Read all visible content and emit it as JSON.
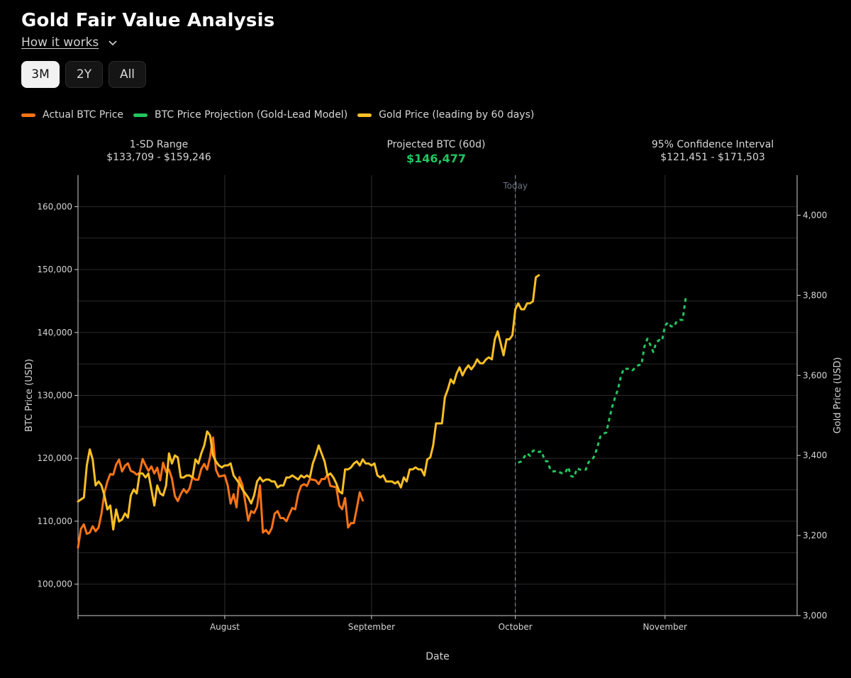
{
  "page": {
    "title": "Gold Fair Value Analysis",
    "how_it_works": "How it works",
    "ranges": [
      {
        "label": "3M",
        "active": true
      },
      {
        "label": "2Y",
        "active": false
      },
      {
        "label": "All",
        "active": false
      }
    ]
  },
  "legend": [
    {
      "label": "Actual BTC Price",
      "color": "#f97316"
    },
    {
      "label": "BTC Price Projection (Gold-Lead Model)",
      "color": "#22c55e"
    },
    {
      "label": "Gold Price (leading by 60 days)",
      "color": "#fbbf24"
    }
  ],
  "stats": {
    "sd_label": "1-SD Range",
    "sd_value": "$133,709 - $159,246",
    "proj_label": "Projected BTC (60d)",
    "proj_value": "$146,477",
    "ci_label": "95% Confidence Interval",
    "ci_value": "$121,451 - $171,503"
  },
  "chart_data": {
    "type": "line",
    "xlabel": "Date",
    "ylabel": "BTC Price (USD)",
    "y2label": "Gold Price (USD)",
    "ylim": [
      95000,
      165000
    ],
    "y2lim": [
      3000,
      4100
    ],
    "x_range_days": [
      0,
      149
    ],
    "yticks": [
      100000,
      110000,
      120000,
      130000,
      140000,
      150000,
      160000
    ],
    "ytick_labels": [
      "100,000",
      "110,000",
      "120,000",
      "130,000",
      "140,000",
      "150,000",
      "160,000"
    ],
    "y2ticks": [
      3000,
      3200,
      3400,
      3600,
      3800,
      4000
    ],
    "y2tick_labels": [
      "3,000",
      "3,200",
      "3,400",
      "3,600",
      "3,800",
      "4,000"
    ],
    "xticks": [
      {
        "day": 50,
        "label": "August"
      },
      {
        "day": 100,
        "label": "September"
      },
      {
        "day": 149,
        "label": "October"
      },
      {
        "day": 200,
        "label": "November"
      }
    ],
    "xlim_days": [
      0,
      245
    ],
    "today_day": 149,
    "today_label": "Today",
    "grid": true,
    "series": [
      {
        "name": "Actual BTC Price",
        "axis": "left",
        "color": "#f97316",
        "start_day": 0,
        "values": [
          105800,
          108800,
          109500,
          108000,
          108200,
          109200,
          108400,
          109000,
          111200,
          114500,
          116300,
          117500,
          117400,
          119000,
          119800,
          117900,
          118800,
          119200,
          118000,
          117800,
          117400,
          117700,
          119900,
          118900,
          118000,
          118700,
          117600,
          118500,
          116500,
          119300,
          117800,
          118200,
          116800,
          114000,
          113200,
          114300,
          115100,
          114500,
          115200,
          117000,
          116600,
          116600,
          118300,
          119100,
          118200,
          120200,
          123300,
          118200,
          117100,
          117200,
          117300,
          115700,
          112800,
          114300,
          112200,
          117000,
          115800,
          113000,
          110100,
          111600,
          111300,
          112300,
          115700,
          108200,
          108600,
          108000,
          108900,
          111200,
          111600,
          110500,
          110500,
          110000,
          111100,
          112100,
          111900,
          114300,
          115600,
          115900,
          115600,
          116700,
          116600,
          116500,
          115900,
          116700,
          116700,
          117400,
          115600,
          115500,
          115400,
          112500,
          111900,
          113700,
          109000,
          109700,
          109700,
          112100,
          114600,
          113300
        ]
      },
      {
        "name": "Gold Price (leading by 60 days)",
        "axis": "right",
        "color": "#fbbf24",
        "start_day": 0,
        "values": [
          3285,
          3290,
          3295,
          3375,
          3415,
          3390,
          3325,
          3335,
          3325,
          3300,
          3265,
          3275,
          3215,
          3265,
          3235,
          3240,
          3255,
          3245,
          3300,
          3315,
          3305,
          3355,
          3355,
          3345,
          3355,
          3315,
          3275,
          3325,
          3305,
          3300,
          3325,
          3405,
          3380,
          3400,
          3395,
          3345,
          3345,
          3350,
          3350,
          3345,
          3390,
          3380,
          3405,
          3425,
          3460,
          3450,
          3400,
          3385,
          3375,
          3370,
          3375,
          3375,
          3380,
          3350,
          3340,
          3330,
          3315,
          3305,
          3295,
          3280,
          3300,
          3335,
          3345,
          3335,
          3340,
          3340,
          3335,
          3335,
          3320,
          3325,
          3325,
          3345,
          3345,
          3350,
          3345,
          3340,
          3350,
          3345,
          3350,
          3345,
          3380,
          3400,
          3425,
          3405,
          3385,
          3350,
          3355,
          3345,
          3330,
          3310,
          3305,
          3365,
          3365,
          3370,
          3380,
          3385,
          3375,
          3390,
          3380,
          3380,
          3375,
          3380,
          3350,
          3345,
          3350,
          3335,
          3335,
          3335,
          3330,
          3335,
          3320,
          3345,
          3335,
          3365,
          3365,
          3370,
          3365,
          3365,
          3350,
          3390,
          3395,
          3425,
          3480,
          3480,
          3480,
          3545,
          3565,
          3590,
          3580,
          3605,
          3620,
          3600,
          3615,
          3625,
          3615,
          3625,
          3640,
          3630,
          3630,
          3640,
          3645,
          3640,
          3690,
          3710,
          3680,
          3650,
          3690,
          3690,
          3700,
          3765,
          3780,
          3765,
          3765,
          3780,
          3780,
          3785,
          3845,
          3850
        ]
      },
      {
        "name": "BTC Price Projection (Gold-Lead Model)",
        "axis": "left",
        "color": "#22c55e",
        "dashed": true,
        "start_day": 150,
        "values": [
          119300,
          119500,
          120200,
          120800,
          120400,
          121200,
          121300,
          121000,
          121100,
          119600,
          119500,
          118100,
          117900,
          118000,
          117800,
          117600,
          117700,
          118600,
          117200,
          117000,
          118400,
          118200,
          118200,
          118200,
          119400,
          119700,
          120400,
          121900,
          123500,
          123900,
          124100,
          126200,
          128200,
          129700,
          131000,
          133100,
          134300,
          134200,
          134300,
          134000,
          134500,
          134800,
          134900,
          137800,
          139000,
          138000,
          136900,
          138400,
          138800,
          138700,
          141100,
          141600,
          141000,
          140900,
          141800,
          142000,
          142000,
          145300,
          145800
        ]
      }
    ]
  }
}
